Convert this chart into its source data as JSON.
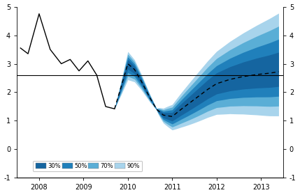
{
  "xlim": [
    2007.5,
    2013.5
  ],
  "ylim": [
    -1,
    5
  ],
  "yticks": [
    -1,
    0,
    1,
    2,
    3,
    4,
    5
  ],
  "xticks": [
    2008,
    2009,
    2010,
    2011,
    2012,
    2013
  ],
  "hline_y": 2.6,
  "historical_x": [
    2007.58,
    2007.75,
    2008.0,
    2008.25,
    2008.5,
    2008.7,
    2008.9,
    2009.1,
    2009.3,
    2009.5,
    2009.7
  ],
  "historical_y": [
    3.55,
    3.35,
    4.75,
    3.5,
    3.0,
    3.15,
    2.75,
    3.1,
    2.6,
    1.5,
    1.42
  ],
  "fan_start_x": 2009.7,
  "fan_end_x": 2013.4,
  "median_x": [
    2009.7,
    2009.85,
    2010.0,
    2010.15,
    2010.3,
    2010.5,
    2010.65,
    2010.8,
    2011.0,
    2011.2,
    2011.5,
    2011.8,
    2012.0,
    2012.3,
    2012.6,
    2012.9,
    2013.2,
    2013.4
  ],
  "median_y": [
    1.42,
    2.2,
    3.0,
    2.8,
    2.4,
    1.8,
    1.4,
    1.2,
    1.15,
    1.4,
    1.75,
    2.1,
    2.3,
    2.45,
    2.55,
    2.62,
    2.67,
    2.72
  ],
  "colors_30": "#1565a0",
  "colors_50": "#2080bb",
  "colors_70": "#5aaed6",
  "colors_90": "#a8d4ec",
  "background_color": "#ffffff",
  "line_color": "#000000",
  "dashed_color": "#000000"
}
